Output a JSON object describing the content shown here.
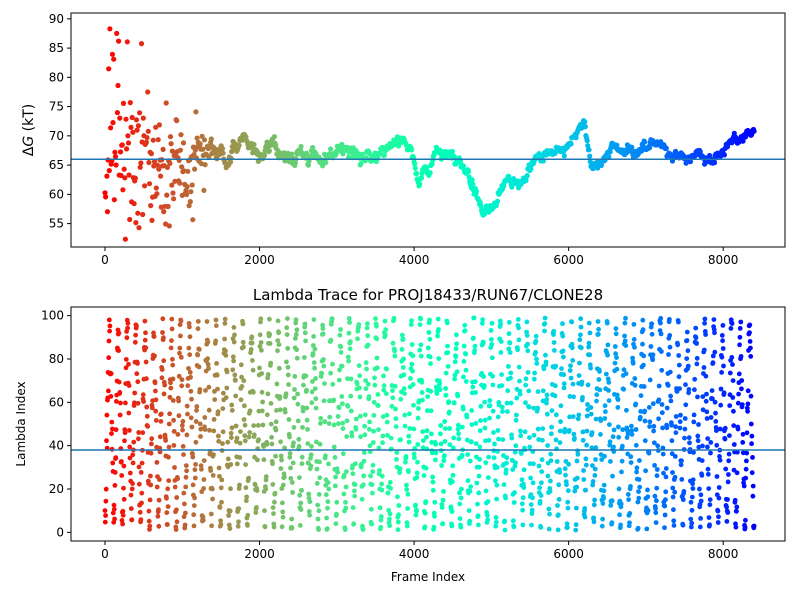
{
  "chart_data": [
    {
      "type": "scatter",
      "title": "",
      "xlabel": "",
      "ylabel": "ΔG (kT)",
      "xlim": [
        -440,
        8800
      ],
      "ylim": [
        51,
        91
      ],
      "x_ticks": [
        0,
        2000,
        4000,
        6000,
        8000
      ],
      "y_ticks": [
        55,
        60,
        65,
        70,
        75,
        80,
        85,
        90
      ],
      "colormap": "rainbow",
      "hline": 66,
      "hline_color": "#1f77b4",
      "x_max": 8400,
      "trace_keypoints": [
        [
          0,
          72
        ],
        [
          150,
          72
        ],
        [
          300,
          68
        ],
        [
          500,
          66
        ],
        [
          700,
          64
        ],
        [
          900,
          66
        ],
        [
          1100,
          63
        ],
        [
          1200,
          67
        ],
        [
          1400,
          68
        ],
        [
          1600,
          66
        ],
        [
          1800,
          70
        ],
        [
          2000,
          67
        ],
        [
          2200,
          68
        ],
        [
          2400,
          66
        ],
        [
          2600,
          67
        ],
        [
          2800,
          66
        ],
        [
          3000,
          68
        ],
        [
          3200,
          67
        ],
        [
          3400,
          66
        ],
        [
          3600,
          68
        ],
        [
          3800,
          69
        ],
        [
          3950,
          69
        ],
        [
          4050,
          62
        ],
        [
          4300,
          67
        ],
        [
          4500,
          66
        ],
        [
          4700,
          64
        ],
        [
          4900,
          57
        ],
        [
          5000,
          58
        ],
        [
          5200,
          63
        ],
        [
          5400,
          62
        ],
        [
          5600,
          66
        ],
        [
          5800,
          67
        ],
        [
          6000,
          69
        ],
        [
          6200,
          72
        ],
        [
          6300,
          65
        ],
        [
          6500,
          67
        ],
        [
          6700,
          68
        ],
        [
          6900,
          67
        ],
        [
          7100,
          69
        ],
        [
          7300,
          67
        ],
        [
          7500,
          66
        ],
        [
          7700,
          67
        ],
        [
          7900,
          66
        ],
        [
          8100,
          69
        ],
        [
          8400,
          71
        ]
      ],
      "trace_noise": [
        [
          0,
          12
        ],
        [
          300,
          9
        ],
        [
          700,
          6
        ],
        [
          1000,
          4
        ],
        [
          1300,
          2.5
        ],
        [
          1800,
          2
        ],
        [
          3000,
          1.7
        ],
        [
          6000,
          1.4
        ],
        [
          8400,
          1.2
        ]
      ]
    },
    {
      "type": "scatter",
      "title": "Lambda Trace for PROJ18433/RUN67/CLONE28",
      "xlabel": "Frame Index",
      "ylabel": "Lambda Index",
      "xlim": [
        -440,
        8800
      ],
      "ylim": [
        -4,
        104
      ],
      "x_ticks": [
        0,
        2000,
        4000,
        6000,
        8000
      ],
      "y_ticks": [
        0,
        20,
        40,
        60,
        80,
        100
      ],
      "colormap": "rainbow",
      "hline": 38,
      "hline_color": "#1f77b4",
      "x_max": 8400,
      "value_range": [
        0,
        99
      ],
      "sweep_period_frames": 115
    }
  ]
}
